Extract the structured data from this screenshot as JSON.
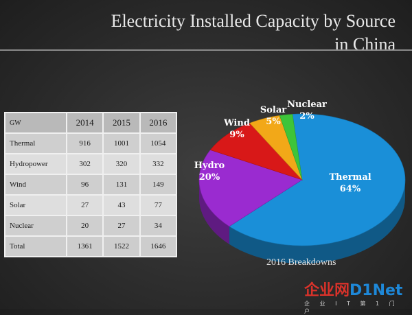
{
  "title_line1": "Electricity Installed Capacity by Source",
  "title_line2": "in China",
  "table": {
    "header": [
      "GW",
      "2014",
      "2015",
      "2016"
    ],
    "rows": [
      [
        "Thermal",
        "916",
        "1001",
        "1054"
      ],
      [
        "Hydropower",
        "302",
        "320",
        "332"
      ],
      [
        "Wind",
        "96",
        "131",
        "149"
      ],
      [
        "Solar",
        "27",
        "43",
        "77"
      ],
      [
        "Nuclear",
        "20",
        "27",
        "34"
      ],
      [
        "Total",
        "1361",
        "1522",
        "1646"
      ]
    ]
  },
  "chart_data": {
    "type": "pie",
    "title": "2016 Breakdowns",
    "slices": [
      {
        "name": "Thermal",
        "value": 64,
        "label": "64%",
        "color": "#1a8fd8"
      },
      {
        "name": "Hydro",
        "value": 20,
        "label": "20%",
        "color": "#9a2bd0"
      },
      {
        "name": "Wind",
        "value": 9,
        "label": "9%",
        "color": "#d81818"
      },
      {
        "name": "Solar",
        "value": 5,
        "label": "5%",
        "color": "#f2a818"
      },
      {
        "name": "Nuclear",
        "value": 2,
        "label": "2%",
        "color": "#3ec43a"
      }
    ],
    "label_colors": {
      "Thermal": "#ffffff",
      "Hydro": "#ffffff",
      "Wind": "#ffffff",
      "Solar": "#ffffff",
      "Nuclear": "#ffffff"
    }
  },
  "watermark": {
    "part1": "企业网",
    "part2": "D1Net",
    "sub": "企 业 I T 第 1 门 户"
  }
}
